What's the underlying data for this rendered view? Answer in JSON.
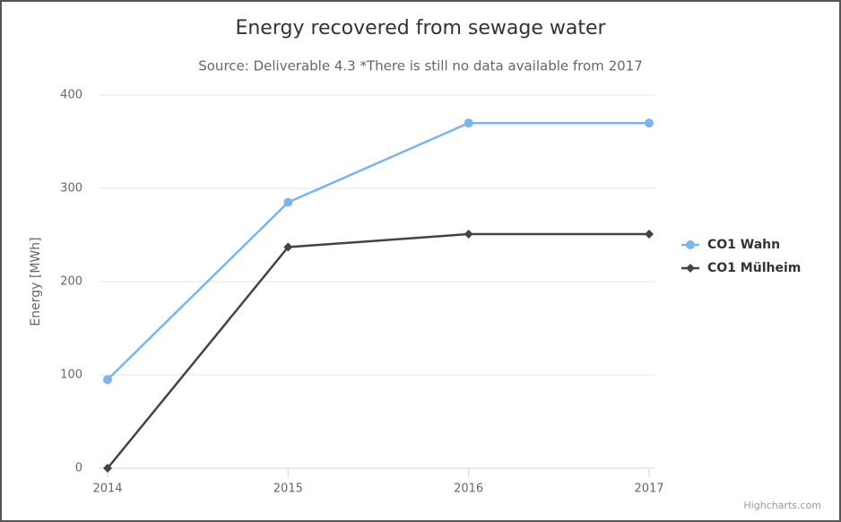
{
  "chart_data": {
    "type": "line",
    "title": "Energy recovered from sewage water",
    "subtitle": "Source: Deliverable 4.3 *There is still no data available from 2017",
    "y_label": "Energy [MWh]",
    "categories": [
      "2014",
      "2015",
      "2016",
      "2017"
    ],
    "series": [
      {
        "name": "CO1 Wahn",
        "color": "#7cb5ec",
        "marker": "circle",
        "values": [
          95,
          285,
          370,
          370
        ]
      },
      {
        "name": "CO1 Mülheim",
        "color": "#434348",
        "marker": "diamond",
        "values": [
          0,
          237,
          251,
          251
        ]
      }
    ],
    "ylim": [
      0,
      400
    ],
    "yticks": [
      0,
      100,
      200,
      300,
      400
    ],
    "grid": true,
    "legend": "right",
    "credits": "Highcharts.com"
  }
}
